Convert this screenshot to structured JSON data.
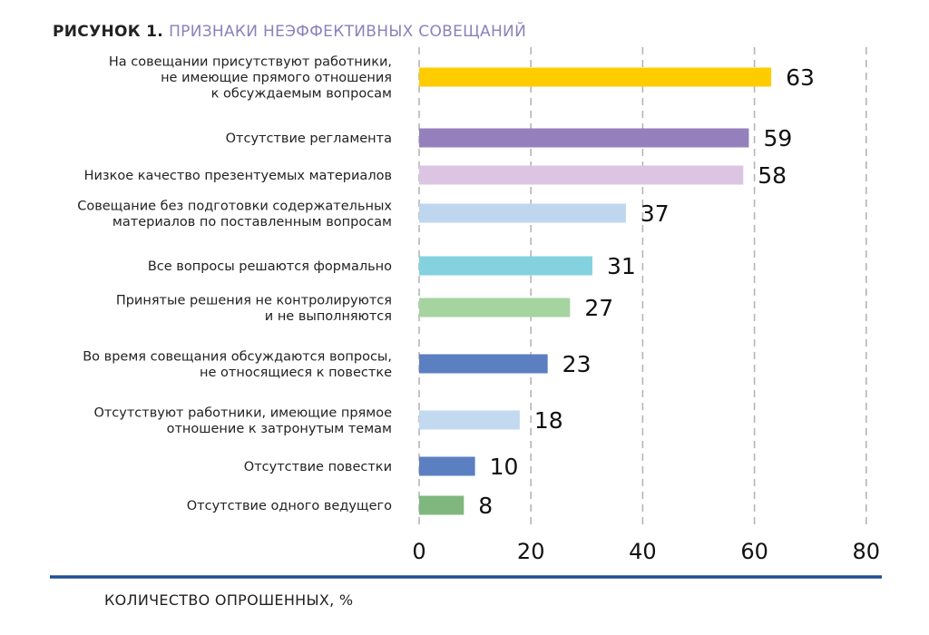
{
  "title": {
    "prefix": "РИСУНОК 1.",
    "main": "ПРИЗНАКИ НЕЭФФЕКТИВНЫХ СОВЕЩАНИЙ"
  },
  "chart_data": {
    "type": "bar",
    "orientation": "horizontal",
    "categories": [
      [
        "На совещании присутствуют работники,",
        "не имеющие прямого отношения",
        "к обсуждаемым вопросам"
      ],
      [
        "Отсутствие регламента"
      ],
      [
        "Низкое качество презентуемых материалов"
      ],
      [
        "Совещание без подготовки содержательных",
        "материалов по поставленным вопросам"
      ],
      [
        "Все вопросы решаются формально"
      ],
      [
        "Принятые решения не контролируются",
        "и не выполняются"
      ],
      [
        "Во время совещания обсуждаются вопросы,",
        "не относящиеся к повестке"
      ],
      [
        "Отсутствуют работники, имеющие прямое",
        "отношение к затронутым темам"
      ],
      [
        "Отсутствие повестки"
      ],
      [
        "Отсутствие одного ведущего"
      ]
    ],
    "values": [
      63,
      59,
      58,
      37,
      31,
      27,
      23,
      18,
      10,
      8
    ],
    "colors": [
      "#ffcc00",
      "#9580bd",
      "#dcc5e2",
      "#bfd6ef",
      "#84d2e0",
      "#a6d4a0",
      "#5b7fc1",
      "#c2d9f0",
      "#5b7fc1",
      "#7fb77e"
    ],
    "xlim": [
      0,
      80
    ],
    "xticks": [
      0,
      20,
      40,
      60,
      80
    ],
    "xlabel": "КОЛИЧЕСТВО ОПРОШЕННЫХ, %",
    "grid": true,
    "grid_style": "dashed vertical",
    "axis_line_color": "#1f4e96"
  }
}
